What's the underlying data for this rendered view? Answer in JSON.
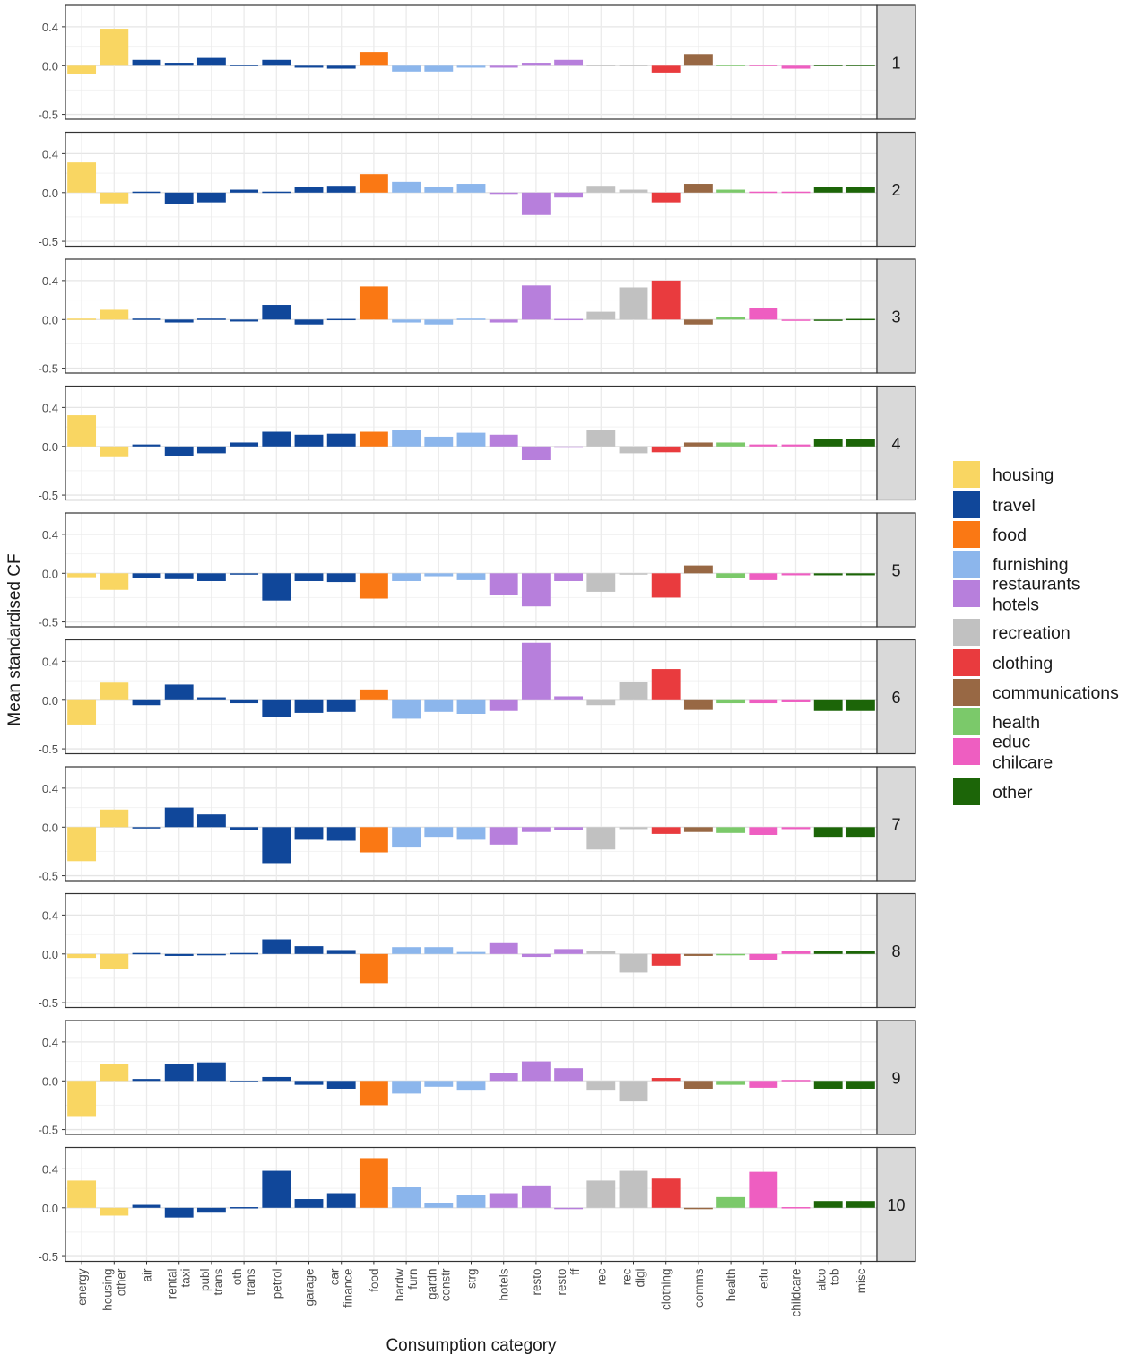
{
  "chart_data": {
    "type": "bar",
    "ylabel": "Mean standardised CF",
    "xlabel": "Consumption category",
    "ylim": [
      -0.55,
      0.62
    ],
    "yticks": [
      0.4,
      0.0,
      -0.5
    ],
    "ytick_labels": [
      "0.4",
      "0.0",
      "-0.5"
    ],
    "grid": true,
    "legend_position": "right",
    "categories": [
      {
        "label": [
          "energy"
        ],
        "group": "housing"
      },
      {
        "label": [
          "housing",
          "other"
        ],
        "group": "housing"
      },
      {
        "label": [
          "air"
        ],
        "group": "travel"
      },
      {
        "label": [
          "rental",
          "taxi"
        ],
        "group": "travel"
      },
      {
        "label": [
          "publ",
          "trans"
        ],
        "group": "travel"
      },
      {
        "label": [
          "oth",
          "trans"
        ],
        "group": "travel"
      },
      {
        "label": [
          "petrol"
        ],
        "group": "travel"
      },
      {
        "label": [
          "garage"
        ],
        "group": "travel"
      },
      {
        "label": [
          "car",
          "finance"
        ],
        "group": "travel"
      },
      {
        "label": [
          "food"
        ],
        "group": "food"
      },
      {
        "label": [
          "hardw",
          "furn"
        ],
        "group": "furnishing"
      },
      {
        "label": [
          "gardn",
          "constr"
        ],
        "group": "furnishing"
      },
      {
        "label": [
          "strg"
        ],
        "group": "furnishing"
      },
      {
        "label": [
          "hotels"
        ],
        "group": "restaurants hotels"
      },
      {
        "label": [
          "resto"
        ],
        "group": "restaurants hotels"
      },
      {
        "label": [
          "resto",
          "ff"
        ],
        "group": "restaurants hotels"
      },
      {
        "label": [
          "rec"
        ],
        "group": "recreation"
      },
      {
        "label": [
          "rec",
          "digi"
        ],
        "group": "recreation"
      },
      {
        "label": [
          "clothing"
        ],
        "group": "clothing"
      },
      {
        "label": [
          "comms"
        ],
        "group": "communications"
      },
      {
        "label": [
          "health"
        ],
        "group": "health"
      },
      {
        "label": [
          "edu"
        ],
        "group": "educ chilcare"
      },
      {
        "label": [
          "childcare"
        ],
        "group": "educ chilcare"
      },
      {
        "label": [
          "alco",
          "tob"
        ],
        "group": "other"
      },
      {
        "label": [
          "misc"
        ],
        "group": "other"
      }
    ],
    "legend": [
      {
        "name": [
          "housing"
        ],
        "key": "housing",
        "color": "#F9D662"
      },
      {
        "name": [
          "travel"
        ],
        "key": "travel",
        "color": "#10479A"
      },
      {
        "name": [
          "food"
        ],
        "key": "food",
        "color": "#FA7814"
      },
      {
        "name": [
          "furnishing"
        ],
        "key": "furnishing",
        "color": "#8CB6EC"
      },
      {
        "name": [
          "restaurants",
          "hotels"
        ],
        "key": "restaurants hotels",
        "color": "#B77FDC"
      },
      {
        "name": [
          "recreation"
        ],
        "key": "recreation",
        "color": "#C1C1C1"
      },
      {
        "name": [
          "clothing"
        ],
        "key": "clothing",
        "color": "#E93B3E"
      },
      {
        "name": [
          "communications"
        ],
        "key": "communications",
        "color": "#986844"
      },
      {
        "name": [
          "health"
        ],
        "key": "health",
        "color": "#7BC96A"
      },
      {
        "name": [
          "educ",
          "chilcare"
        ],
        "key": "educ chilcare",
        "color": "#EE5EC1"
      },
      {
        "name": [
          "other"
        ],
        "key": "other",
        "color": "#1C6508"
      }
    ],
    "panels": [
      {
        "strip": "1",
        "values": [
          -0.08,
          0.38,
          0.06,
          0.03,
          0.08,
          0.01,
          0.06,
          -0.02,
          -0.03,
          0.14,
          -0.06,
          -0.06,
          -0.02,
          -0.02,
          0.03,
          0.06,
          0.01,
          0.01,
          -0.07,
          0.12,
          0.01,
          0.01,
          -0.03,
          0.01,
          0.01
        ]
      },
      {
        "strip": "2",
        "values": [
          0.31,
          -0.11,
          0.01,
          -0.12,
          -0.1,
          0.03,
          0.01,
          0.06,
          0.07,
          0.19,
          0.11,
          0.06,
          0.09,
          -0.01,
          -0.23,
          -0.05,
          0.07,
          0.03,
          -0.1,
          0.09,
          0.03,
          0.01,
          0.01,
          0.06,
          0.06
        ]
      },
      {
        "strip": "3",
        "values": [
          0.01,
          0.1,
          0.01,
          -0.03,
          0.01,
          -0.02,
          0.15,
          -0.05,
          0.0,
          0.34,
          -0.03,
          -0.05,
          0.01,
          -0.03,
          0.35,
          0.0,
          0.08,
          0.33,
          0.4,
          -0.05,
          0.03,
          0.12,
          -0.01,
          -0.01,
          0.0
        ]
      },
      {
        "strip": "4",
        "values": [
          0.32,
          -0.11,
          0.02,
          -0.1,
          -0.07,
          0.04,
          0.15,
          0.12,
          0.13,
          0.15,
          0.17,
          0.1,
          0.14,
          0.12,
          -0.14,
          -0.01,
          0.17,
          -0.07,
          -0.06,
          0.04,
          0.04,
          0.02,
          0.02,
          0.08,
          0.08
        ]
      },
      {
        "strip": "5",
        "values": [
          -0.04,
          -0.17,
          -0.05,
          -0.06,
          -0.08,
          -0.01,
          -0.28,
          -0.08,
          -0.09,
          -0.26,
          -0.08,
          -0.03,
          -0.07,
          -0.22,
          -0.34,
          -0.08,
          -0.19,
          -0.01,
          -0.25,
          0.08,
          -0.05,
          -0.07,
          -0.02,
          -0.02,
          -0.02
        ]
      },
      {
        "strip": "6",
        "values": [
          -0.25,
          0.18,
          -0.05,
          0.16,
          0.03,
          -0.03,
          -0.17,
          -0.13,
          -0.12,
          0.11,
          -0.19,
          -0.12,
          -0.14,
          -0.11,
          0.59,
          0.04,
          -0.05,
          0.19,
          0.32,
          -0.1,
          -0.03,
          -0.03,
          -0.02,
          -0.11,
          -0.11
        ]
      },
      {
        "strip": "7",
        "values": [
          -0.35,
          0.18,
          -0.01,
          0.2,
          0.13,
          -0.03,
          -0.37,
          -0.13,
          -0.14,
          -0.26,
          -0.21,
          -0.1,
          -0.13,
          -0.18,
          -0.05,
          -0.03,
          -0.23,
          -0.02,
          -0.07,
          -0.05,
          -0.06,
          -0.08,
          -0.02,
          -0.1,
          -0.1
        ]
      },
      {
        "strip": "8",
        "values": [
          -0.04,
          -0.15,
          0.01,
          -0.02,
          -0.01,
          0.01,
          0.15,
          0.08,
          0.04,
          -0.3,
          0.07,
          0.07,
          0.02,
          0.12,
          -0.03,
          0.05,
          0.03,
          -0.19,
          -0.12,
          -0.02,
          -0.01,
          -0.06,
          0.03,
          0.03,
          0.03
        ]
      },
      {
        "strip": "9",
        "values": [
          -0.37,
          0.17,
          0.02,
          0.17,
          0.19,
          -0.01,
          0.04,
          -0.04,
          -0.08,
          -0.25,
          -0.13,
          -0.06,
          -0.1,
          0.08,
          0.2,
          0.13,
          -0.1,
          -0.21,
          0.03,
          -0.08,
          -0.04,
          -0.07,
          0.01,
          -0.08,
          -0.08
        ]
      },
      {
        "strip": "10",
        "values": [
          0.28,
          -0.08,
          0.03,
          -0.1,
          -0.05,
          0.0,
          0.38,
          0.09,
          0.15,
          0.51,
          0.21,
          0.05,
          0.13,
          0.15,
          0.23,
          -0.01,
          0.28,
          0.38,
          0.3,
          -0.01,
          0.11,
          0.37,
          0.0,
          0.07,
          0.07
        ]
      }
    ]
  }
}
